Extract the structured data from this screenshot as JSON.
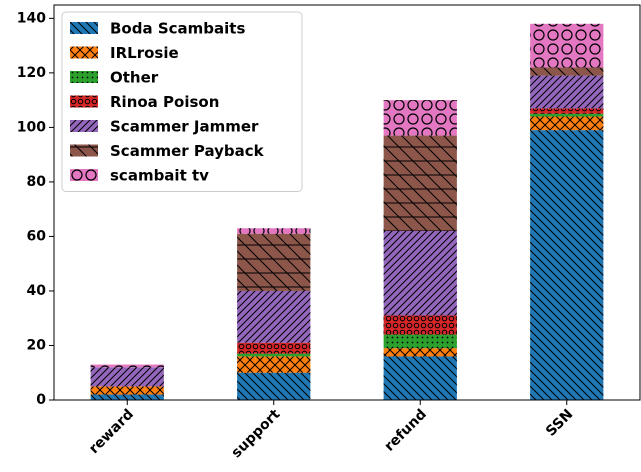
{
  "chart_data": {
    "type": "bar",
    "stacked": true,
    "categories": [
      "reward",
      "support",
      "refund",
      "SSN"
    ],
    "series": [
      {
        "name": "Boda Scambaits",
        "color": "#1f77b4",
        "hatch": "\\",
        "values": [
          2,
          10,
          16,
          99
        ]
      },
      {
        "name": "IRLrosie",
        "color": "#ff7f0e",
        "hatch": "x",
        "values": [
          3,
          6,
          3,
          5
        ]
      },
      {
        "name": "Other",
        "color": "#2ca02c",
        "hatch": ".",
        "values": [
          0,
          1,
          5,
          1
        ]
      },
      {
        "name": "Rinoa Poison",
        "color": "#d62728",
        "hatch": "o",
        "values": [
          0,
          4,
          7,
          2
        ]
      },
      {
        "name": "Scammer Jammer",
        "color": "#9467bd",
        "hatch": "//",
        "values": [
          7,
          19,
          31,
          12
        ]
      },
      {
        "name": "Scammer Payback",
        "color": "#8c564b",
        "hatch": "-\\",
        "values": [
          0,
          21,
          35,
          3
        ]
      },
      {
        "name": "scambait tv",
        "color": "#e377c2",
        "hatch": "O",
        "values": [
          1,
          2,
          13,
          16
        ]
      }
    ],
    "ylim": [
      0,
      144.9
    ],
    "yticks": [
      0,
      20,
      40,
      60,
      80,
      100,
      120,
      140
    ],
    "legend": "upper left"
  }
}
